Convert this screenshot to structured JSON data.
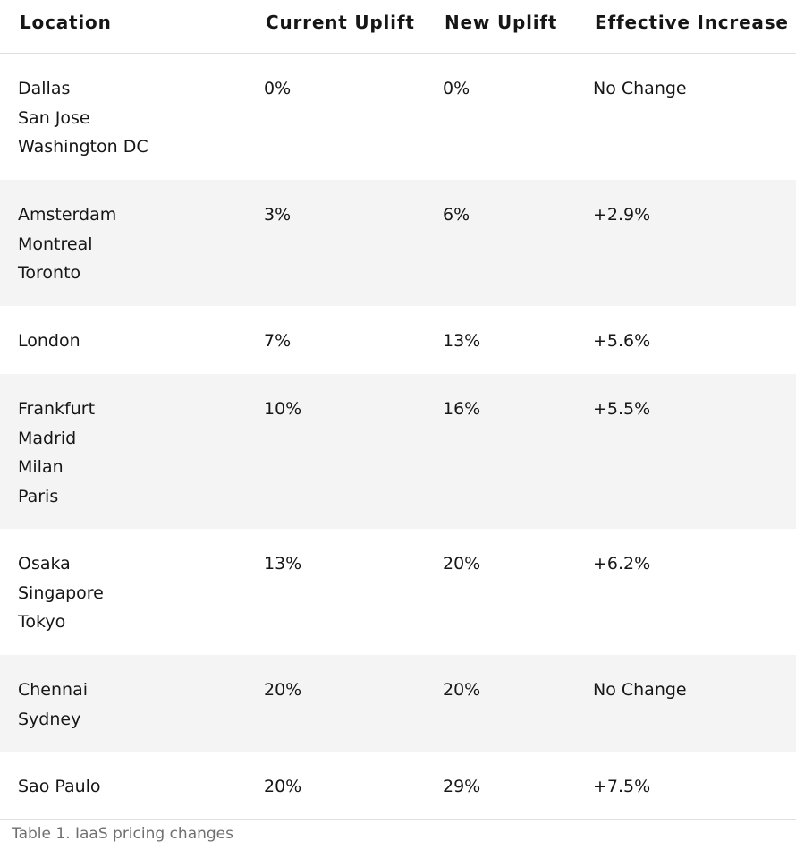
{
  "table": {
    "headers": {
      "location": "Location",
      "current_uplift": "Current Uplift",
      "new_uplift": "New Uplift",
      "effective_increase": "Effective Increase"
    },
    "rows": [
      {
        "locations": [
          "Dallas",
          "San Jose",
          "Washington DC"
        ],
        "current_uplift": "0%",
        "new_uplift": "0%",
        "effective_increase": "No Change"
      },
      {
        "locations": [
          "Amsterdam",
          "Montreal",
          "Toronto"
        ],
        "current_uplift": "3%",
        "new_uplift": "6%",
        "effective_increase": "+2.9%"
      },
      {
        "locations": [
          "London"
        ],
        "current_uplift": "7%",
        "new_uplift": "13%",
        "effective_increase": "+5.6%"
      },
      {
        "locations": [
          "Frankfurt",
          "Madrid",
          "Milan",
          "Paris"
        ],
        "current_uplift": "10%",
        "new_uplift": "16%",
        "effective_increase": "+5.5%"
      },
      {
        "locations": [
          "Osaka",
          "Singapore",
          "Tokyo"
        ],
        "current_uplift": "13%",
        "new_uplift": "20%",
        "effective_increase": "+6.2%"
      },
      {
        "locations": [
          "Chennai",
          "Sydney"
        ],
        "current_uplift": "20%",
        "new_uplift": "20%",
        "effective_increase": "No Change"
      },
      {
        "locations": [
          "Sao Paulo"
        ],
        "current_uplift": "20%",
        "new_uplift": "29%",
        "effective_increase": "+7.5%"
      }
    ]
  },
  "caption": "Table 1. IaaS pricing changes"
}
